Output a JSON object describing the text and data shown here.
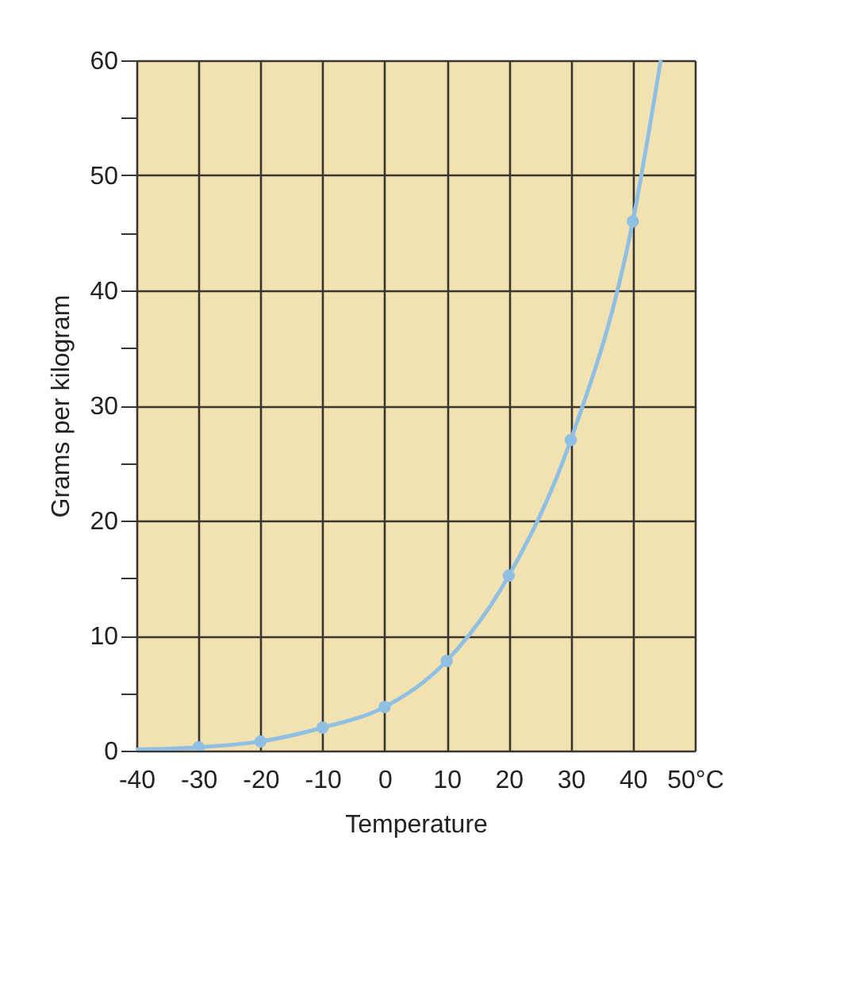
{
  "chart_data": {
    "type": "line",
    "xlabel": "Temperature",
    "ylabel": "Grams per kilogram",
    "series": [
      {
        "color": "#8fc0e3",
        "marker": "none",
        "x": [
          -40,
          -30,
          -20,
          -10,
          0,
          10,
          20,
          30,
          40,
          44.5
        ],
        "values": [
          0.1,
          0.3,
          0.8,
          2,
          3.8,
          7.8,
          15.2,
          27,
          46,
          60
        ]
      },
      {
        "type": "scatter",
        "color": "#8fc0e3",
        "marker": "circle",
        "x": [
          -30,
          -20,
          -10,
          0,
          10,
          20,
          30,
          40
        ],
        "values": [
          0.3,
          0.8,
          2,
          3.8,
          7.8,
          15.2,
          27,
          46
        ]
      }
    ],
    "xlim": [
      -40,
      50
    ],
    "xticks": [
      -40,
      -30,
      -20,
      -10,
      0,
      10,
      20,
      30,
      40,
      {
        "value": 50,
        "label": "50°C"
      }
    ],
    "ylim": [
      0,
      60
    ],
    "yticks": [
      0,
      {
        "value": 5,
        "label": null
      },
      10,
      {
        "value": 15,
        "label": null
      },
      20,
      {
        "value": 25,
        "label": null
      },
      30,
      {
        "value": 35,
        "label": null
      },
      40,
      {
        "value": 45,
        "label": null
      },
      50,
      {
        "value": 55,
        "label": null
      },
      60
    ],
    "grid": true
  }
}
